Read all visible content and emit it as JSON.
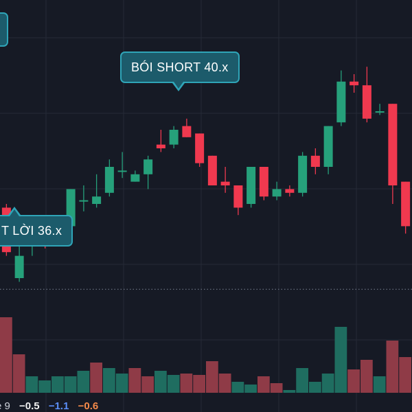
{
  "colors": {
    "background": "#161a25",
    "grid": "#252a36",
    "up": "#26a17b",
    "down": "#f0394f",
    "vol_up": "#1f6d60",
    "vol_down": "#8f3b47",
    "callout_fill": "#1c5b6b",
    "callout_border": "#2fa5b8",
    "price_line": "#7c8495"
  },
  "callouts": {
    "short_label": "BÓI SHORT 40.x",
    "take_profit_label": "T LỜI 36.x"
  },
  "legend": {
    "name_fragment": "e 9",
    "value_1": "−0.5",
    "value_2": "−1.1",
    "value_3": "−0.6"
  },
  "chart_data": {
    "type": "candlestick",
    "price_line": 36.7,
    "candles": [
      {
        "o": 38.9,
        "c": 37.7,
        "h": 39.0,
        "l": 37.6
      },
      {
        "o": 37.0,
        "c": 37.6,
        "h": 38.0,
        "l": 36.9
      },
      {
        "o": 38.0,
        "c": 38.3,
        "h": 38.4,
        "l": 37.6
      },
      {
        "o": 38.3,
        "c": 38.1,
        "h": 38.4,
        "l": 37.8
      },
      {
        "o": 38.2,
        "c": 38.5,
        "h": 38.7,
        "l": 37.9
      },
      {
        "o": 38.4,
        "c": 39.4,
        "h": 39.4,
        "l": 38.3
      },
      {
        "o": 39.1,
        "c": 39.1,
        "h": 39.5,
        "l": 38.8
      },
      {
        "o": 39.0,
        "c": 39.2,
        "h": 39.8,
        "l": 38.9
      },
      {
        "o": 39.3,
        "c": 40.0,
        "h": 40.2,
        "l": 39.2
      },
      {
        "o": 39.9,
        "c": 39.9,
        "h": 40.4,
        "l": 39.7
      },
      {
        "o": 39.6,
        "c": 39.8,
        "h": 39.9,
        "l": 39.6
      },
      {
        "o": 39.8,
        "c": 40.2,
        "h": 40.3,
        "l": 39.4
      },
      {
        "o": 40.6,
        "c": 40.5,
        "h": 41.0,
        "l": 40.4
      },
      {
        "o": 40.6,
        "c": 41.0,
        "h": 41.1,
        "l": 40.5
      },
      {
        "o": 41.1,
        "c": 40.8,
        "h": 41.3,
        "l": 40.8
      },
      {
        "o": 40.9,
        "c": 40.1,
        "h": 40.9,
        "l": 40.0
      },
      {
        "o": 40.3,
        "c": 39.5,
        "h": 40.3,
        "l": 39.5
      },
      {
        "o": 39.6,
        "c": 39.5,
        "h": 40.0,
        "l": 39.3
      },
      {
        "o": 39.5,
        "c": 38.9,
        "h": 39.5,
        "l": 38.7
      },
      {
        "o": 39.0,
        "c": 40.0,
        "h": 40.0,
        "l": 38.9
      },
      {
        "o": 40.0,
        "c": 39.2,
        "h": 40.0,
        "l": 39.1
      },
      {
        "o": 39.2,
        "c": 39.4,
        "h": 39.6,
        "l": 39.1
      },
      {
        "o": 39.4,
        "c": 39.3,
        "h": 39.5,
        "l": 39.2
      },
      {
        "o": 39.3,
        "c": 40.3,
        "h": 40.4,
        "l": 39.2
      },
      {
        "o": 40.3,
        "c": 40.0,
        "h": 40.5,
        "l": 39.8
      },
      {
        "o": 40.0,
        "c": 41.1,
        "h": 41.1,
        "l": 39.8
      },
      {
        "o": 41.2,
        "c": 42.3,
        "h": 42.6,
        "l": 41.1
      },
      {
        "o": 42.3,
        "c": 42.2,
        "h": 42.5,
        "l": 42.0
      },
      {
        "o": 42.2,
        "c": 41.3,
        "h": 42.7,
        "l": 41.2
      },
      {
        "o": 41.5,
        "c": 41.5,
        "h": 41.7,
        "l": 41.4
      },
      {
        "o": 41.7,
        "c": 39.5,
        "h": 41.7,
        "l": 39.0
      },
      {
        "o": 39.6,
        "c": 38.4,
        "h": 39.6,
        "l": 38.2
      },
      {
        "o": 38.4,
        "c": 38.0,
        "h": 38.6,
        "l": 37.8
      }
    ],
    "volume": [
      {
        "v": 5.5,
        "up": false
      },
      {
        "v": 2.8,
        "up": false
      },
      {
        "v": 1.2,
        "up": true
      },
      {
        "v": 0.9,
        "up": true
      },
      {
        "v": 1.2,
        "up": true
      },
      {
        "v": 1.2,
        "up": true
      },
      {
        "v": 1.6,
        "up": true
      },
      {
        "v": 2.2,
        "up": false
      },
      {
        "v": 1.8,
        "up": true
      },
      {
        "v": 1.4,
        "up": true
      },
      {
        "v": 1.8,
        "up": false
      },
      {
        "v": 1.2,
        "up": false
      },
      {
        "v": 1.6,
        "up": true
      },
      {
        "v": 1.3,
        "up": true
      },
      {
        "v": 1.4,
        "up": false
      },
      {
        "v": 1.3,
        "up": false
      },
      {
        "v": 2.3,
        "up": false
      },
      {
        "v": 1.4,
        "up": false
      },
      {
        "v": 0.8,
        "up": true
      },
      {
        "v": 0.6,
        "up": true
      },
      {
        "v": 1.2,
        "up": false
      },
      {
        "v": 0.7,
        "up": false
      },
      {
        "v": 0.2,
        "up": true
      },
      {
        "v": 1.8,
        "up": true
      },
      {
        "v": 0.8,
        "up": true
      },
      {
        "v": 1.4,
        "up": true
      },
      {
        "v": 4.8,
        "up": true
      },
      {
        "v": 1.7,
        "up": false
      },
      {
        "v": 2.4,
        "up": false
      },
      {
        "v": 1.2,
        "up": true
      },
      {
        "v": 3.8,
        "up": false
      },
      {
        "v": 2.6,
        "up": false
      },
      {
        "v": 2.5,
        "up": false
      }
    ]
  }
}
